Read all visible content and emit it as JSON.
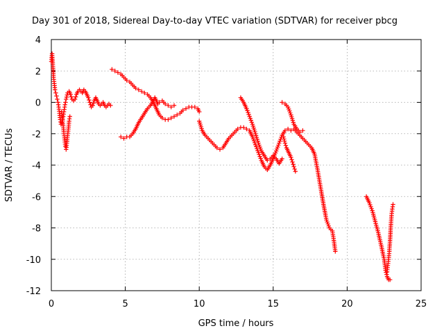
{
  "chart_data": {
    "type": "scatter",
    "title": "Day 301 of 2018, Sidereal Day-to-day VTEC variation (SDTVAR) for receiver pbcg",
    "xlabel": "GPS time / hours",
    "ylabel": "SDTVAR / TECUs",
    "xlim": [
      0,
      25
    ],
    "ylim": [
      -12,
      4
    ],
    "xticks": [
      0,
      5,
      10,
      15,
      20,
      25
    ],
    "yticks": [
      4,
      2,
      0,
      -2,
      -4,
      -6,
      -8,
      -10,
      -12
    ],
    "grid": true,
    "marker": "+",
    "color": "#ff0000",
    "series": [
      {
        "name": "segment-1",
        "points": [
          [
            0.0,
            2.6
          ],
          [
            0.05,
            3.1
          ],
          [
            0.1,
            2.4
          ],
          [
            0.15,
            1.6
          ],
          [
            0.2,
            1.2
          ],
          [
            0.25,
            0.8
          ],
          [
            0.3,
            0.6
          ],
          [
            0.35,
            0.4
          ],
          [
            0.4,
            0.2
          ],
          [
            0.45,
            0.0
          ],
          [
            0.5,
            -0.3
          ],
          [
            0.55,
            -0.7
          ],
          [
            0.6,
            -1.1
          ],
          [
            0.65,
            -1.4
          ],
          [
            0.7,
            -1.3
          ],
          [
            0.75,
            -1.1
          ],
          [
            0.8,
            -0.9
          ],
          [
            0.85,
            -0.6
          ],
          [
            0.9,
            -0.3
          ],
          [
            0.95,
            0.0
          ],
          [
            1.0,
            0.2
          ],
          [
            1.1,
            0.6
          ],
          [
            1.2,
            0.7
          ],
          [
            1.3,
            0.5
          ],
          [
            1.4,
            0.2
          ],
          [
            1.5,
            0.1
          ],
          [
            1.6,
            0.2
          ],
          [
            1.7,
            0.5
          ],
          [
            1.8,
            0.7
          ],
          [
            1.9,
            0.8
          ],
          [
            2.0,
            0.7
          ],
          [
            2.1,
            0.6
          ],
          [
            2.2,
            0.8
          ],
          [
            2.3,
            0.7
          ],
          [
            2.4,
            0.5
          ],
          [
            2.5,
            0.3
          ],
          [
            2.6,
            0.0
          ],
          [
            2.7,
            -0.3
          ],
          [
            2.8,
            -0.2
          ],
          [
            2.9,
            0.1
          ],
          [
            3.0,
            0.3
          ],
          [
            3.1,
            0.1
          ],
          [
            3.2,
            -0.1
          ],
          [
            3.3,
            -0.2
          ],
          [
            3.4,
            -0.1
          ],
          [
            3.5,
            0.0
          ],
          [
            3.6,
            -0.2
          ],
          [
            3.7,
            -0.3
          ],
          [
            3.8,
            -0.2
          ],
          [
            3.9,
            -0.1
          ],
          [
            4.0,
            -0.2
          ]
        ]
      },
      {
        "name": "segment-1-descent",
        "points": [
          [
            0.7,
            -0.6
          ],
          [
            0.75,
            -1.0
          ],
          [
            0.8,
            -1.5
          ],
          [
            0.85,
            -2.0
          ],
          [
            0.9,
            -2.4
          ],
          [
            0.95,
            -2.8
          ],
          [
            1.0,
            -3.0
          ],
          [
            1.05,
            -2.6
          ],
          [
            1.1,
            -2.1
          ],
          [
            1.15,
            -1.7
          ],
          [
            1.2,
            -1.2
          ],
          [
            1.25,
            -0.9
          ]
        ]
      },
      {
        "name": "segment-2",
        "points": [
          [
            4.1,
            2.1
          ],
          [
            4.3,
            2.0
          ],
          [
            4.5,
            1.9
          ],
          [
            4.7,
            1.8
          ],
          [
            4.9,
            1.6
          ],
          [
            5.1,
            1.4
          ],
          [
            5.3,
            1.3
          ],
          [
            5.5,
            1.1
          ],
          [
            5.7,
            0.9
          ],
          [
            5.9,
            0.8
          ],
          [
            6.1,
            0.7
          ],
          [
            6.3,
            0.6
          ],
          [
            6.5,
            0.5
          ],
          [
            6.7,
            0.3
          ],
          [
            6.9,
            0.0
          ],
          [
            7.0,
            -0.2
          ],
          [
            7.1,
            -0.4
          ],
          [
            7.2,
            -0.6
          ],
          [
            7.3,
            -0.8
          ],
          [
            7.4,
            -0.9
          ],
          [
            7.5,
            -1.0
          ],
          [
            7.7,
            -1.1
          ],
          [
            7.9,
            -1.1
          ],
          [
            8.1,
            -1.0
          ],
          [
            8.3,
            -0.9
          ],
          [
            8.5,
            -0.8
          ],
          [
            8.7,
            -0.7
          ],
          [
            8.9,
            -0.5
          ],
          [
            9.1,
            -0.4
          ],
          [
            9.3,
            -0.3
          ],
          [
            9.5,
            -0.3
          ],
          [
            9.7,
            -0.3
          ],
          [
            9.9,
            -0.4
          ],
          [
            10.0,
            -0.6
          ]
        ]
      },
      {
        "name": "segment-3",
        "points": [
          [
            4.7,
            -2.2
          ],
          [
            4.9,
            -2.3
          ],
          [
            5.1,
            -2.2
          ],
          [
            5.3,
            -2.2
          ],
          [
            5.5,
            -2.0
          ],
          [
            5.7,
            -1.7
          ],
          [
            5.9,
            -1.3
          ],
          [
            6.1,
            -1.0
          ],
          [
            6.3,
            -0.7
          ],
          [
            6.5,
            -0.4
          ],
          [
            6.7,
            -0.2
          ],
          [
            6.9,
            0.1
          ],
          [
            7.0,
            0.3
          ],
          [
            7.1,
            0.1
          ],
          [
            7.2,
            -0.1
          ],
          [
            7.3,
            0.0
          ],
          [
            7.5,
            0.1
          ],
          [
            7.7,
            -0.1
          ],
          [
            7.9,
            -0.2
          ],
          [
            8.1,
            -0.3
          ],
          [
            8.3,
            -0.2
          ]
        ]
      },
      {
        "name": "segment-4",
        "points": [
          [
            10.0,
            -1.2
          ],
          [
            10.2,
            -1.8
          ],
          [
            10.4,
            -2.1
          ],
          [
            10.6,
            -2.3
          ],
          [
            10.8,
            -2.5
          ],
          [
            11.0,
            -2.7
          ],
          [
            11.2,
            -2.9
          ],
          [
            11.4,
            -3.0
          ],
          [
            11.6,
            -2.9
          ],
          [
            11.8,
            -2.6
          ],
          [
            12.0,
            -2.3
          ],
          [
            12.2,
            -2.1
          ],
          [
            12.4,
            -1.9
          ],
          [
            12.6,
            -1.7
          ],
          [
            12.8,
            -1.6
          ],
          [
            13.0,
            -1.6
          ],
          [
            13.2,
            -1.7
          ],
          [
            13.4,
            -1.8
          ],
          [
            13.6,
            -2.2
          ],
          [
            13.8,
            -2.7
          ],
          [
            14.0,
            -3.2
          ],
          [
            14.2,
            -3.7
          ],
          [
            14.4,
            -4.1
          ],
          [
            14.6,
            -4.3
          ],
          [
            14.8,
            -4.0
          ],
          [
            15.0,
            -3.6
          ],
          [
            15.2,
            -3.1
          ],
          [
            15.4,
            -2.6
          ],
          [
            15.6,
            -2.1
          ],
          [
            15.8,
            -1.8
          ],
          [
            16.0,
            -1.7
          ],
          [
            16.2,
            -1.8
          ],
          [
            16.4,
            -1.7
          ],
          [
            16.6,
            -1.9
          ],
          [
            16.8,
            -2.1
          ],
          [
            17.0,
            -2.3
          ],
          [
            17.2,
            -2.5
          ],
          [
            17.4,
            -2.7
          ],
          [
            17.6,
            -2.9
          ],
          [
            17.8,
            -3.3
          ],
          [
            18.0,
            -4.3
          ],
          [
            18.2,
            -5.4
          ],
          [
            18.4,
            -6.5
          ],
          [
            18.6,
            -7.5
          ],
          [
            18.8,
            -8.0
          ],
          [
            19.0,
            -8.2
          ],
          [
            19.1,
            -8.8
          ],
          [
            19.2,
            -9.5
          ]
        ]
      },
      {
        "name": "segment-5",
        "points": [
          [
            12.8,
            0.3
          ],
          [
            13.0,
            0.0
          ],
          [
            13.2,
            -0.4
          ],
          [
            13.4,
            -0.9
          ],
          [
            13.6,
            -1.4
          ],
          [
            13.8,
            -2.0
          ],
          [
            14.0,
            -2.6
          ],
          [
            14.2,
            -3.1
          ],
          [
            14.4,
            -3.4
          ],
          [
            14.6,
            -3.7
          ],
          [
            14.8,
            -3.6
          ],
          [
            15.0,
            -3.4
          ],
          [
            15.2,
            -3.6
          ],
          [
            15.4,
            -3.9
          ],
          [
            15.6,
            -3.6
          ]
        ]
      },
      {
        "name": "segment-6",
        "points": [
          [
            15.6,
            0.0
          ],
          [
            15.8,
            -0.1
          ],
          [
            16.0,
            -0.3
          ],
          [
            16.2,
            -0.8
          ],
          [
            16.4,
            -1.4
          ],
          [
            16.6,
            -1.7
          ],
          [
            16.8,
            -1.9
          ],
          [
            17.0,
            -1.8
          ]
        ]
      },
      {
        "name": "segment-6-drop",
        "points": [
          [
            15.7,
            -2.2
          ],
          [
            15.8,
            -2.6
          ],
          [
            15.9,
            -2.9
          ],
          [
            16.0,
            -3.1
          ],
          [
            16.1,
            -3.3
          ],
          [
            16.2,
            -3.5
          ],
          [
            16.3,
            -3.8
          ],
          [
            16.4,
            -4.1
          ],
          [
            16.5,
            -4.4
          ]
        ]
      },
      {
        "name": "segment-7",
        "points": [
          [
            21.3,
            -6.0
          ],
          [
            21.5,
            -6.4
          ],
          [
            21.7,
            -6.9
          ],
          [
            21.9,
            -7.6
          ],
          [
            22.1,
            -8.3
          ],
          [
            22.3,
            -9.1
          ],
          [
            22.5,
            -10.0
          ],
          [
            22.6,
            -10.7
          ],
          [
            22.7,
            -11.1
          ],
          [
            22.8,
            -11.3
          ],
          [
            22.9,
            -11.3
          ]
        ]
      },
      {
        "name": "segment-8",
        "points": [
          [
            22.7,
            -10.8
          ],
          [
            22.75,
            -10.4
          ],
          [
            22.8,
            -10.0
          ],
          [
            22.85,
            -9.5
          ],
          [
            22.9,
            -8.8
          ],
          [
            22.95,
            -7.9
          ],
          [
            23.0,
            -7.2
          ],
          [
            23.05,
            -6.8
          ],
          [
            23.1,
            -6.5
          ]
        ]
      }
    ]
  }
}
